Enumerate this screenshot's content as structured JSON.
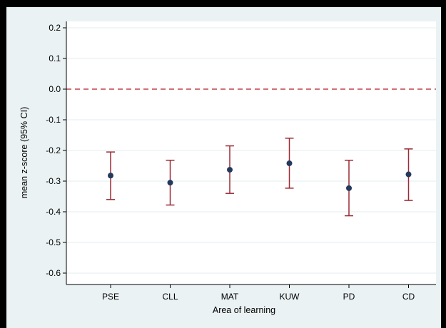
{
  "chart_data": {
    "type": "scatter",
    "subtype": "point-estimate-with-error-bars",
    "xlabel": "Area of learning",
    "ylabel": "mean z-score (95% CI)",
    "categories": [
      "PSE",
      "CLL",
      "MAT",
      "KUW",
      "PD",
      "CD"
    ],
    "series": [
      {
        "values": [
          -0.282,
          -0.305,
          -0.263,
          -0.242,
          -0.323,
          -0.278
        ],
        "ci_lower": [
          -0.36,
          -0.378,
          -0.34,
          -0.323,
          -0.413,
          -0.363
        ],
        "ci_upper": [
          -0.205,
          -0.232,
          -0.185,
          -0.16,
          -0.232,
          -0.195
        ]
      }
    ],
    "reference_line": {
      "y": 0.0,
      "style": "dashed",
      "color": "#c0404f"
    },
    "ylim": [
      -0.62,
      0.22
    ],
    "yticks": [
      0.2,
      0.1,
      0.0,
      -0.1,
      -0.2,
      -0.3,
      -0.4,
      -0.5,
      -0.6
    ],
    "ytick_labels": [
      "0.2",
      "0.1",
      "0.0",
      "-0.1",
      "-0.2",
      "-0.3",
      "-0.4",
      "-0.5",
      "-0.6"
    ],
    "grid": "horizontal",
    "colors": {
      "background": "#eaf2f3",
      "plot_background": "#ffffff",
      "grid": "#e3ecef",
      "error_bar": "#9c2b36",
      "point": "#223a5e",
      "reference": "#c0404f"
    }
  }
}
